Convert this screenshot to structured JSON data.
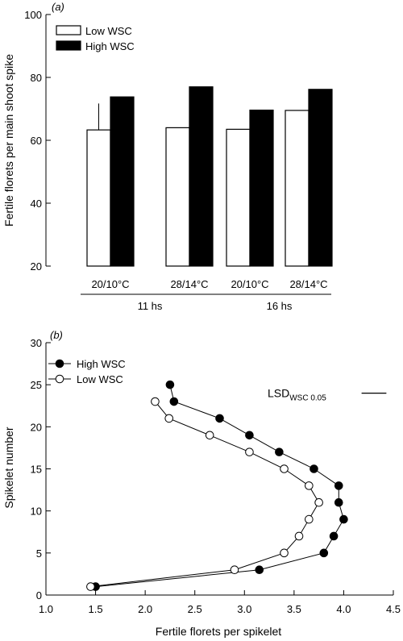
{
  "chart_data": [
    {
      "type": "bar",
      "panel_label": "(a)",
      "ylabel": "Fertile florets per main shoot spike",
      "ylim": [
        20,
        100
      ],
      "yticks": [
        "20",
        "40",
        "60",
        "80",
        "100"
      ],
      "categories": [
        "20/10°C",
        "28/14°C",
        "20/10°C",
        "28/14°C"
      ],
      "groups": [
        {
          "label": "11 hs",
          "span": [
            0,
            1
          ]
        },
        {
          "label": "16 hs",
          "span": [
            2,
            3
          ]
        }
      ],
      "series": [
        {
          "name": "Low WSC",
          "fill": "#ffffff",
          "values": [
            63.3,
            64.0,
            63.5,
            69.5
          ]
        },
        {
          "name": "High WSC",
          "fill": "#000000",
          "values": [
            73.8,
            77.0,
            69.6,
            76.2
          ]
        }
      ],
      "error_bar": {
        "category_index": 0,
        "series_index": 0,
        "upper": 71.7
      },
      "legend_position": "top-left",
      "grid": false
    },
    {
      "type": "scatter",
      "panel_label": "(b)",
      "xlabel": "Fertile florets per spikelet",
      "ylabel": "Spikelet number",
      "xlim": [
        1.0,
        4.5
      ],
      "ylim": [
        0,
        30
      ],
      "xticks": [
        "1.0",
        "1.5",
        "2.0",
        "2.5",
        "3.0",
        "3.5",
        "4.0",
        "4.5"
      ],
      "yticks": [
        "0",
        "5",
        "10",
        "15",
        "20",
        "25",
        "30"
      ],
      "series": [
        {
          "name": "High WSC",
          "marker": "filled",
          "points": [
            [
              2.25,
              25
            ],
            [
              2.29,
              23
            ],
            [
              2.75,
              21
            ],
            [
              3.05,
              19
            ],
            [
              3.35,
              17
            ],
            [
              3.7,
              15
            ],
            [
              3.95,
              13
            ],
            [
              3.95,
              11
            ],
            [
              4.0,
              9
            ],
            [
              3.9,
              7
            ],
            [
              3.8,
              5
            ],
            [
              3.15,
              3
            ],
            [
              1.5,
              1
            ]
          ]
        },
        {
          "name": "Low WSC",
          "marker": "open",
          "points": [
            [
              2.1,
              23
            ],
            [
              2.24,
              21
            ],
            [
              2.65,
              19
            ],
            [
              3.05,
              17
            ],
            [
              3.4,
              15
            ],
            [
              3.65,
              13
            ],
            [
              3.75,
              11
            ],
            [
              3.65,
              9
            ],
            [
              3.55,
              7
            ],
            [
              3.4,
              5
            ],
            [
              2.9,
              3
            ],
            [
              1.45,
              1
            ]
          ]
        }
      ],
      "lsd": {
        "label": "LSD",
        "subscript": "WSC 0.05",
        "value": 0.25,
        "x_start": 4.18,
        "y": 24
      },
      "legend_position": "top-left",
      "grid": false
    }
  ]
}
